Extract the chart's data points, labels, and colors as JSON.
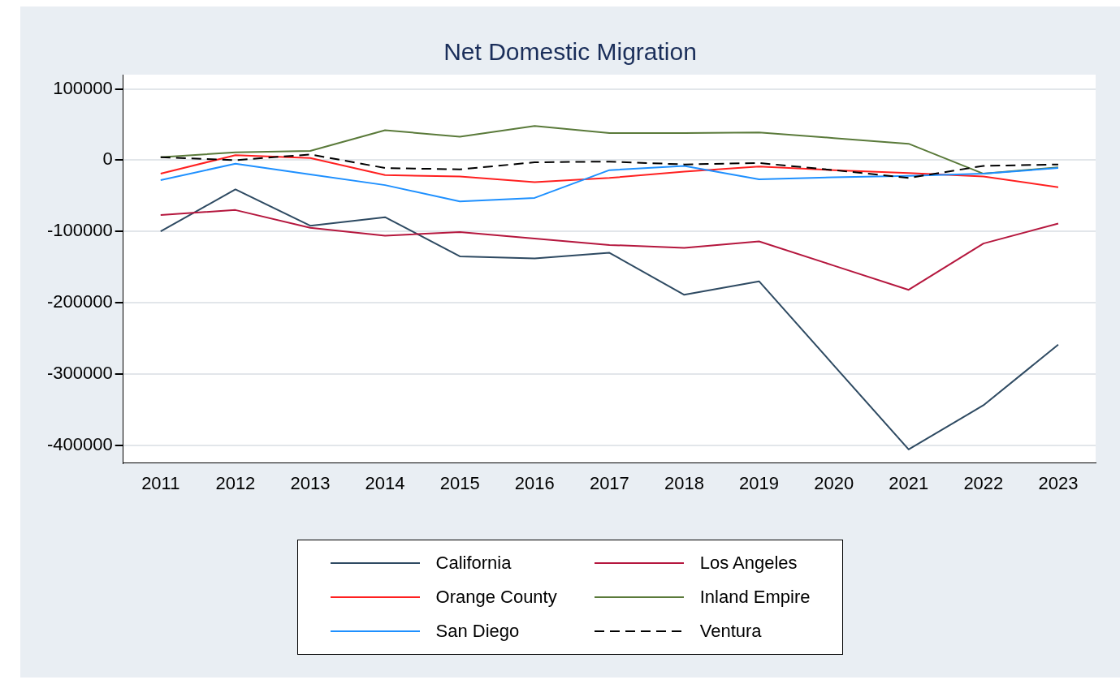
{
  "chart_data": {
    "type": "line",
    "title": "Net Domestic Migration",
    "categories": [
      "2011",
      "2012",
      "2013",
      "2014",
      "2015",
      "2016",
      "2017",
      "2018",
      "2019",
      "2020",
      "2021",
      "2022",
      "2023"
    ],
    "series": [
      {
        "name": "California",
        "color": "#2e4a62",
        "values": [
          -100000,
          -41000,
          -92000,
          -80000,
          -135000,
          -138000,
          -130000,
          -189000,
          -170000,
          -288000,
          -406000,
          -344000,
          -259000
        ]
      },
      {
        "name": "Los Angeles",
        "color": "#b5173e",
        "values": [
          -77000,
          -70000,
          -95000,
          -106000,
          -101000,
          -110000,
          -119000,
          -123000,
          -114000,
          -148000,
          -182000,
          -117000,
          -89000
        ]
      },
      {
        "name": "Orange County",
        "color": "#ff2020",
        "values": [
          -19000,
          7000,
          3000,
          -21000,
          -23000,
          -31000,
          -25000,
          -16000,
          -9000,
          -14000,
          -18000,
          -23000,
          -38000
        ]
      },
      {
        "name": "Inland Empire",
        "color": "#5a7a3a",
        "values": [
          4000,
          11000,
          13000,
          42000,
          33000,
          48000,
          38000,
          38000,
          39000,
          31000,
          23000,
          -19000,
          -10000
        ]
      },
      {
        "name": "San Diego",
        "color": "#1e90ff",
        "values": [
          -28000,
          -5000,
          -20000,
          -35000,
          -58000,
          -53000,
          -14000,
          -8000,
          -27000,
          -24000,
          -22000,
          -19000,
          -11000
        ]
      },
      {
        "name": "Ventura",
        "color": "#000000",
        "line_style": "dashed",
        "values": [
          4000,
          0,
          8000,
          -11000,
          -13000,
          -3000,
          -2000,
          -6000,
          -4000,
          -14000,
          -25000,
          -8000,
          -6000
        ]
      }
    ],
    "ylim": [
      -425000,
      120000
    ],
    "yticks": [
      -400000,
      -300000,
      -200000,
      -100000,
      0,
      100000
    ],
    "grid": "y",
    "legend": "bottom",
    "marker": "none",
    "line_style": "solid"
  }
}
